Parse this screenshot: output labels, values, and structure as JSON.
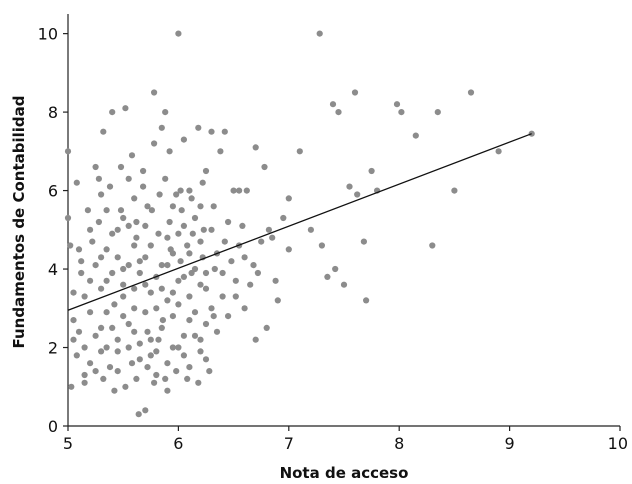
{
  "chart_data": {
    "type": "scatter",
    "xlabel": "Nota de acceso",
    "ylabel": "Fundamentos de Contabilidad",
    "xlim": [
      5,
      10
    ],
    "ylim": [
      0,
      10.5
    ],
    "x_ticks": [
      "5",
      "6",
      "7",
      "8",
      "9",
      "10"
    ],
    "y_ticks": [
      "0",
      "2",
      "4",
      "6",
      "8",
      "10"
    ],
    "grid": false,
    "legend": "none",
    "point_color": "#8c8c8c",
    "line_color": "#111111",
    "trend_line": {
      "x": [
        5,
        9.2
      ],
      "y": [
        2.95,
        7.45
      ]
    },
    "points": [
      [
        5.0,
        7.0
      ],
      [
        5.0,
        5.3
      ],
      [
        5.02,
        4.6
      ],
      [
        5.05,
        3.4
      ],
      [
        5.05,
        2.7
      ],
      [
        5.03,
        1.0
      ],
      [
        5.08,
        6.2
      ],
      [
        5.1,
        4.5
      ],
      [
        5.12,
        3.9
      ],
      [
        5.15,
        2.0
      ],
      [
        5.15,
        1.1
      ],
      [
        5.2,
        5.0
      ],
      [
        5.2,
        1.6
      ],
      [
        5.25,
        6.6
      ],
      [
        5.25,
        1.4
      ],
      [
        5.28,
        6.3
      ],
      [
        5.3,
        4.3
      ],
      [
        5.3,
        2.5
      ],
      [
        5.32,
        7.5
      ],
      [
        5.35,
        3.7
      ],
      [
        5.35,
        2.9
      ],
      [
        5.38,
        1.5
      ],
      [
        5.4,
        8.0
      ],
      [
        5.4,
        4.9
      ],
      [
        5.42,
        3.1
      ],
      [
        5.45,
        2.2
      ],
      [
        5.45,
        1.9
      ],
      [
        5.48,
        5.5
      ],
      [
        5.5,
        4.0
      ],
      [
        5.5,
        3.3
      ],
      [
        5.52,
        8.1
      ],
      [
        5.55,
        6.3
      ],
      [
        5.55,
        2.6
      ],
      [
        5.58,
        1.6
      ],
      [
        5.6,
        4.6
      ],
      [
        5.6,
        3.0
      ],
      [
        5.62,
        5.2
      ],
      [
        5.64,
        0.3
      ],
      [
        5.65,
        4.2
      ],
      [
        5.65,
        2.1
      ],
      [
        5.68,
        6.1
      ],
      [
        5.7,
        0.4
      ],
      [
        5.7,
        3.6
      ],
      [
        5.72,
        2.4
      ],
      [
        5.75,
        1.8
      ],
      [
        5.76,
        5.5
      ],
      [
        5.78,
        8.5
      ],
      [
        5.8,
        3.8
      ],
      [
        5.8,
        1.3
      ],
      [
        5.82,
        4.9
      ],
      [
        5.85,
        7.6
      ],
      [
        5.86,
        2.7
      ],
      [
        5.88,
        6.3
      ],
      [
        5.88,
        8.0
      ],
      [
        5.9,
        3.2
      ],
      [
        5.9,
        0.9
      ],
      [
        5.92,
        7.0
      ],
      [
        5.95,
        4.4
      ],
      [
        5.95,
        2.0
      ],
      [
        5.98,
        5.9
      ],
      [
        6.0,
        10.0
      ],
      [
        6.0,
        3.7
      ],
      [
        6.02,
        6.0
      ],
      [
        6.05,
        7.3
      ],
      [
        6.05,
        2.3
      ],
      [
        6.08,
        4.6
      ],
      [
        6.1,
        6.0
      ],
      [
        6.1,
        1.5
      ],
      [
        6.12,
        3.9
      ],
      [
        6.15,
        4.0
      ],
      [
        6.18,
        7.6
      ],
      [
        6.2,
        5.6
      ],
      [
        6.2,
        2.2
      ],
      [
        6.22,
        4.3
      ],
      [
        6.25,
        6.5
      ],
      [
        6.25,
        3.5
      ],
      [
        6.28,
        1.4
      ],
      [
        6.3,
        7.5
      ],
      [
        6.3,
        5.0
      ],
      [
        6.32,
        2.8
      ],
      [
        6.35,
        4.4
      ],
      [
        6.38,
        7.0
      ],
      [
        6.4,
        3.3
      ],
      [
        6.42,
        7.5
      ],
      [
        6.45,
        2.8
      ],
      [
        6.48,
        4.2
      ],
      [
        6.5,
        6.0
      ],
      [
        6.52,
        3.3
      ],
      [
        6.55,
        6.0
      ],
      [
        6.6,
        4.3
      ],
      [
        6.62,
        6.0
      ],
      [
        6.65,
        3.6
      ],
      [
        6.7,
        7.1
      ],
      [
        6.7,
        2.2
      ],
      [
        6.75,
        4.7
      ],
      [
        6.78,
        6.6
      ],
      [
        6.8,
        2.5
      ],
      [
        6.85,
        4.8
      ],
      [
        6.9,
        3.2
      ],
      [
        6.95,
        5.3
      ],
      [
        7.0,
        5.8
      ],
      [
        7.0,
        4.5
      ],
      [
        7.1,
        7.0
      ],
      [
        7.2,
        5.0
      ],
      [
        7.28,
        10.0
      ],
      [
        7.3,
        4.6
      ],
      [
        7.35,
        3.8
      ],
      [
        7.4,
        8.2
      ],
      [
        7.42,
        4.0
      ],
      [
        7.45,
        8.0
      ],
      [
        7.5,
        3.6
      ],
      [
        7.55,
        6.1
      ],
      [
        7.6,
        8.5
      ],
      [
        7.62,
        5.9
      ],
      [
        7.68,
        4.7
      ],
      [
        7.7,
        3.2
      ],
      [
        7.75,
        6.5
      ],
      [
        7.8,
        6.0
      ],
      [
        7.98,
        8.2
      ],
      [
        8.02,
        8.0
      ],
      [
        8.15,
        7.4
      ],
      [
        8.3,
        4.6
      ],
      [
        8.35,
        8.0
      ],
      [
        8.5,
        6.0
      ],
      [
        8.65,
        8.5
      ],
      [
        8.9,
        7.0
      ],
      [
        9.2,
        7.45
      ],
      [
        5.3,
        5.9
      ],
      [
        5.35,
        5.5
      ],
      [
        5.45,
        5.0
      ],
      [
        5.55,
        5.1
      ],
      [
        5.6,
        5.8
      ],
      [
        5.7,
        5.1
      ],
      [
        5.75,
        4.6
      ],
      [
        5.85,
        4.1
      ],
      [
        5.9,
        4.8
      ],
      [
        5.95,
        5.6
      ],
      [
        6.0,
        4.9
      ],
      [
        6.05,
        5.1
      ],
      [
        6.1,
        4.4
      ],
      [
        6.15,
        5.3
      ],
      [
        6.2,
        4.7
      ],
      [
        6.25,
        3.9
      ],
      [
        5.25,
        4.1
      ],
      [
        5.3,
        3.5
      ],
      [
        5.35,
        4.5
      ],
      [
        5.4,
        3.9
      ],
      [
        5.45,
        4.3
      ],
      [
        5.5,
        3.6
      ],
      [
        5.55,
        4.1
      ],
      [
        5.6,
        3.5
      ],
      [
        5.65,
        3.9
      ],
      [
        5.7,
        4.3
      ],
      [
        5.75,
        3.4
      ],
      [
        5.8,
        3.0
      ],
      [
        5.85,
        3.5
      ],
      [
        5.9,
        4.1
      ],
      [
        5.95,
        3.4
      ],
      [
        6.0,
        3.1
      ],
      [
        6.05,
        3.8
      ],
      [
        6.1,
        3.3
      ],
      [
        6.15,
        2.9
      ],
      [
        6.2,
        3.6
      ],
      [
        6.25,
        2.6
      ],
      [
        6.3,
        3.0
      ],
      [
        6.35,
        2.4
      ],
      [
        6.4,
        3.9
      ],
      [
        5.2,
        2.9
      ],
      [
        5.25,
        2.3
      ],
      [
        5.3,
        1.9
      ],
      [
        5.35,
        2.0
      ],
      [
        5.4,
        2.5
      ],
      [
        5.45,
        1.4
      ],
      [
        5.5,
        2.8
      ],
      [
        5.55,
        2.0
      ],
      [
        5.6,
        2.4
      ],
      [
        5.65,
        1.7
      ],
      [
        5.7,
        2.9
      ],
      [
        5.75,
        2.2
      ],
      [
        5.8,
        1.9
      ],
      [
        5.85,
        2.5
      ],
      [
        5.9,
        1.6
      ],
      [
        5.95,
        2.8
      ],
      [
        6.0,
        2.0
      ],
      [
        6.05,
        1.8
      ],
      [
        6.1,
        2.7
      ],
      [
        6.15,
        2.3
      ],
      [
        6.2,
        1.9
      ],
      [
        6.25,
        1.7
      ],
      [
        5.15,
        3.3
      ],
      [
        5.2,
        3.7
      ],
      [
        5.1,
        2.4
      ],
      [
        5.12,
        4.2
      ],
      [
        5.18,
        5.5
      ],
      [
        5.22,
        4.7
      ],
      [
        5.28,
        5.2
      ],
      [
        5.38,
        6.1
      ],
      [
        5.48,
        6.6
      ],
      [
        5.58,
        6.9
      ],
      [
        5.68,
        6.5
      ],
      [
        5.78,
        7.2
      ],
      [
        5.82,
        2.2
      ],
      [
        5.92,
        5.2
      ],
      [
        6.02,
        4.2
      ],
      [
        6.12,
        5.8
      ],
      [
        6.22,
        6.2
      ],
      [
        6.32,
        5.6
      ],
      [
        6.42,
        4.7
      ],
      [
        6.52,
        3.7
      ],
      [
        6.58,
        5.1
      ],
      [
        6.68,
        4.1
      ],
      [
        6.72,
        3.9
      ],
      [
        6.82,
        5.0
      ],
      [
        6.88,
        3.7
      ],
      [
        6.6,
        3.0
      ],
      [
        5.05,
        2.2
      ],
      [
        5.08,
        1.8
      ],
      [
        5.15,
        1.3
      ],
      [
        5.32,
        1.2
      ],
      [
        5.42,
        0.9
      ],
      [
        5.52,
        1.0
      ],
      [
        5.62,
        1.2
      ],
      [
        5.72,
        1.5
      ],
      [
        5.78,
        1.1
      ],
      [
        5.88,
        1.2
      ],
      [
        5.98,
        1.4
      ],
      [
        6.08,
        1.2
      ],
      [
        6.18,
        1.1
      ],
      [
        5.5,
        5.3
      ],
      [
        5.62,
        4.8
      ],
      [
        5.72,
        5.6
      ],
      [
        5.83,
        5.9
      ],
      [
        5.93,
        4.5
      ],
      [
        6.03,
        5.5
      ],
      [
        6.13,
        4.9
      ],
      [
        6.23,
        5.0
      ],
      [
        6.33,
        4.0
      ],
      [
        6.45,
        5.2
      ],
      [
        6.55,
        4.6
      ]
    ]
  }
}
